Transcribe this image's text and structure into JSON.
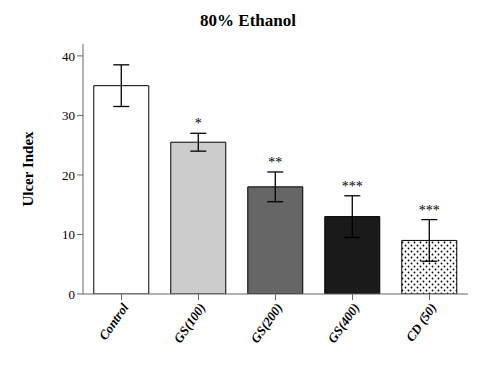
{
  "chart_data": {
    "type": "bar",
    "title": "80% Ethanol",
    "ylabel": "Ulcer Index",
    "categories": [
      "Control",
      "GS(100)",
      "GS(200)",
      "GS(400)",
      "CD (50)"
    ],
    "values": [
      35.0,
      25.5,
      18.0,
      13.0,
      9.0
    ],
    "errors": [
      3.5,
      1.5,
      2.5,
      3.5,
      3.5
    ],
    "annotations": [
      null,
      "*",
      "**",
      "***",
      "***"
    ],
    "colors": [
      "#FFFFFF",
      "#CCCCCC",
      "#666666",
      "#1A1A1A",
      "#FFFFFF"
    ],
    "ylim": [
      0,
      42
    ],
    "yticks": [
      0,
      10,
      20,
      30,
      40
    ],
    "grid": false
  }
}
